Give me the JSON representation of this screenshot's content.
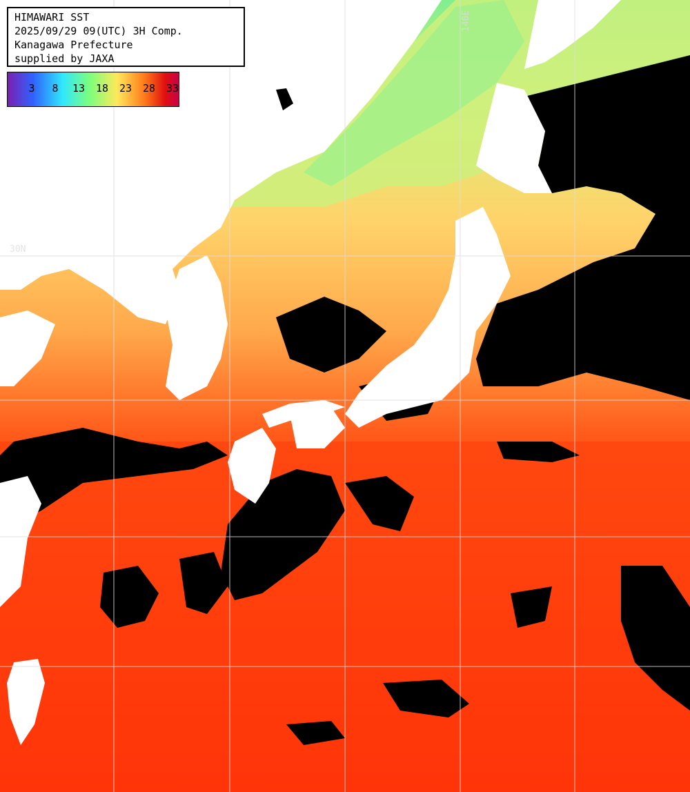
{
  "header": {
    "line1": "HIMAWARI SST",
    "line2": "2025/09/29 09(UTC) 3H Comp.",
    "line3": "Kanagawa Prefecture",
    "line4": "supplied by JAXA"
  },
  "colorbar": {
    "ticks": [
      "3",
      "8",
      "13",
      "18",
      "23",
      "28",
      "33"
    ],
    "colors": [
      "#7a1fb0",
      "#2f62ff",
      "#2fe7ff",
      "#7cff7c",
      "#ffe85a",
      "#ff7a1a",
      "#e01010",
      "#c8004a"
    ]
  },
  "gridlines": {
    "lat_label": "30N",
    "lon_label": "140E"
  },
  "colors": {
    "land": "#ffffff",
    "cloud": "#000000",
    "sea_warm": "#ff3a0a",
    "sea_mid": "#ffb347",
    "sea_cool": "#d8f07a",
    "sea_cold": "#7fef8f",
    "grid": "#dddddd"
  }
}
